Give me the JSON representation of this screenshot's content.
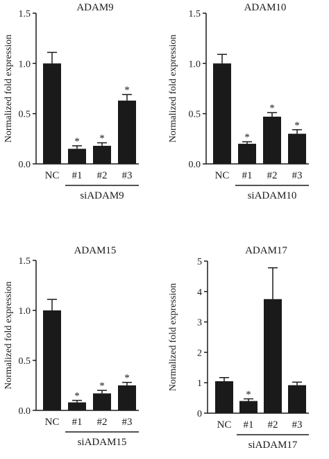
{
  "chart_data": [
    {
      "type": "bar",
      "title": "ADAM9",
      "ylabel": "Normalized fold expression",
      "categories": [
        "NC",
        "#1",
        "#2",
        "#3"
      ],
      "values": [
        1.0,
        0.15,
        0.18,
        0.63
      ],
      "errors": [
        0.11,
        0.03,
        0.03,
        0.06
      ],
      "significance": [
        "",
        "*",
        "*",
        "*"
      ],
      "group_label": "siADAM9",
      "ylim": [
        0,
        1.5
      ],
      "yticks": [
        "0.0",
        "0.5",
        "1.0",
        "1.5"
      ],
      "color": "#1a1a1a"
    },
    {
      "type": "bar",
      "title": "ADAM10",
      "ylabel": "Normalized fold expression",
      "categories": [
        "NC",
        "#1",
        "#2",
        "#3"
      ],
      "values": [
        1.0,
        0.2,
        0.47,
        0.3
      ],
      "errors": [
        0.09,
        0.02,
        0.04,
        0.04
      ],
      "significance": [
        "",
        "*",
        "*",
        "*"
      ],
      "group_label": "siADAM10",
      "ylim": [
        0,
        1.5
      ],
      "yticks": [
        "0.0",
        "0.5",
        "1.0",
        "1.5"
      ],
      "color": "#1a1a1a"
    },
    {
      "type": "bar",
      "title": "ADAM15",
      "ylabel": "Normalized fold expression",
      "categories": [
        "NC",
        "#1",
        "#2",
        "#3"
      ],
      "values": [
        1.0,
        0.08,
        0.17,
        0.25
      ],
      "errors": [
        0.11,
        0.02,
        0.03,
        0.03
      ],
      "significance": [
        "",
        "*",
        "*",
        "*"
      ],
      "group_label": "siADAM15",
      "ylim": [
        0,
        1.5
      ],
      "yticks": [
        "0.0",
        "0.5",
        "1.0",
        "1.5"
      ],
      "color": "#1a1a1a"
    },
    {
      "type": "bar",
      "title": "ADAM17",
      "ylabel": "Normalized fold expression",
      "categories": [
        "NC",
        "#1",
        "#2",
        "#3"
      ],
      "values": [
        1.05,
        0.4,
        3.75,
        0.92
      ],
      "errors": [
        0.12,
        0.07,
        1.03,
        0.1
      ],
      "significance": [
        "",
        "*",
        "",
        ""
      ],
      "group_label": "siADAM17",
      "ylim": [
        0,
        5
      ],
      "yticks": [
        "0",
        "1",
        "2",
        "3",
        "4",
        "5"
      ],
      "color": "#1a1a1a"
    }
  ]
}
